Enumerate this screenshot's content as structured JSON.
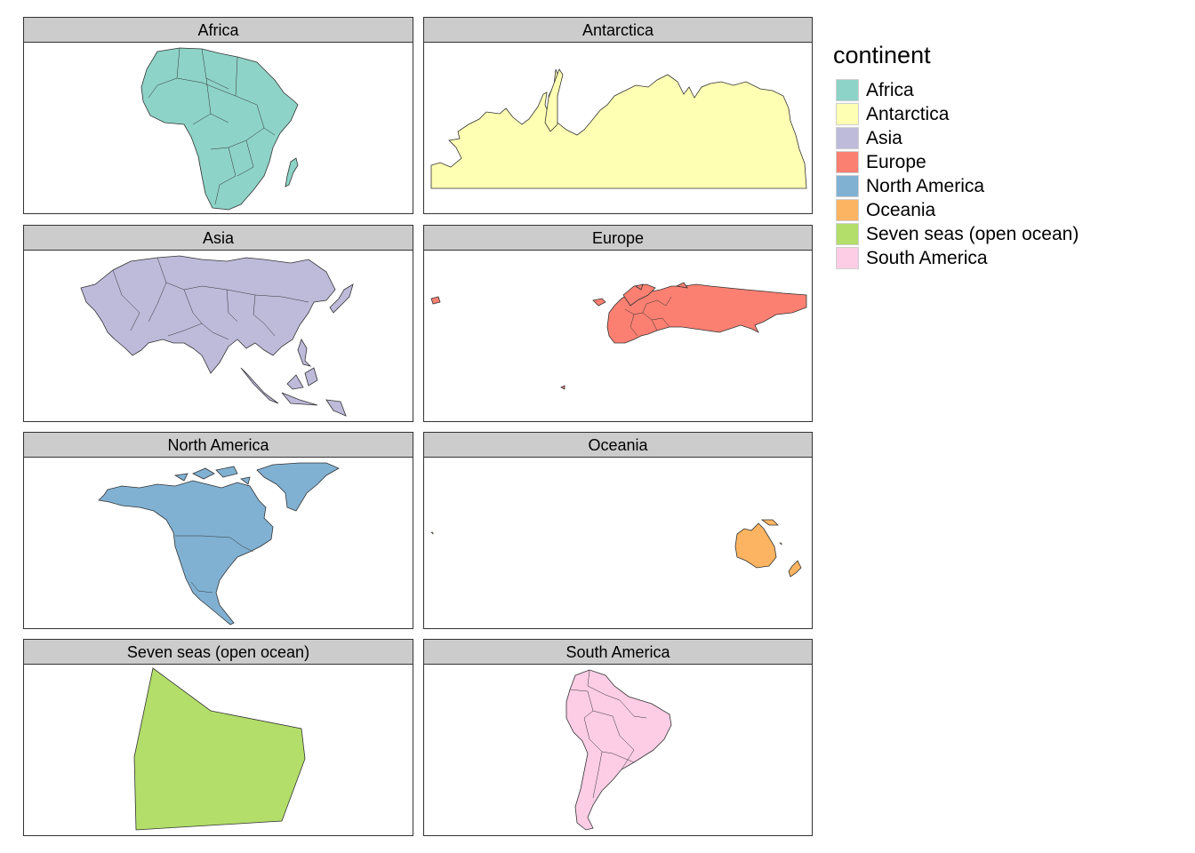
{
  "legend": {
    "title": "continent",
    "items": [
      {
        "label": "Africa",
        "color": "#8DD3C7"
      },
      {
        "label": "Antarctica",
        "color": "#FFFFB3"
      },
      {
        "label": "Asia",
        "color": "#BEBADA"
      },
      {
        "label": "Europe",
        "color": "#FB8072"
      },
      {
        "label": "North America",
        "color": "#80B1D3"
      },
      {
        "label": "Oceania",
        "color": "#FDB462"
      },
      {
        "label": "Seven seas (open ocean)",
        "color": "#B3DE69"
      },
      {
        "label": "South America",
        "color": "#FCCDE5"
      }
    ]
  },
  "facets": [
    {
      "title": "Africa",
      "color": "#8DD3C7"
    },
    {
      "title": "Antarctica",
      "color": "#FFFFB3"
    },
    {
      "title": "Asia",
      "color": "#BEBADA"
    },
    {
      "title": "Europe",
      "color": "#FB8072"
    },
    {
      "title": "North America",
      "color": "#80B1D3"
    },
    {
      "title": "Oceania",
      "color": "#FDB462"
    },
    {
      "title": "Seven seas (open ocean)",
      "color": "#B3DE69"
    },
    {
      "title": "South America",
      "color": "#FCCDE5"
    }
  ]
}
